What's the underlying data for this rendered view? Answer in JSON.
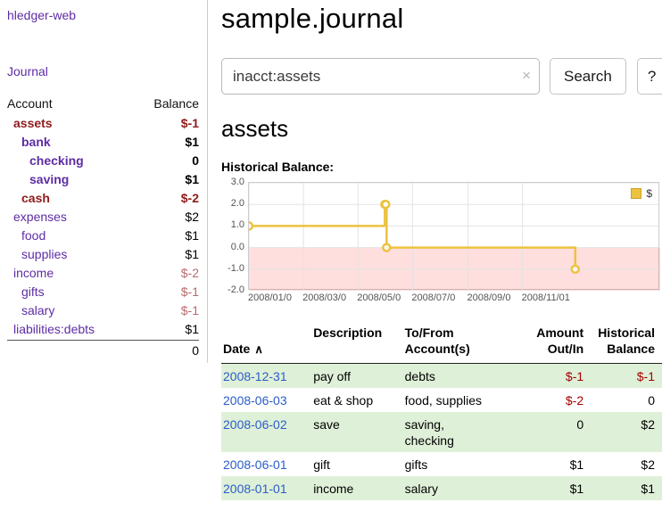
{
  "app": {
    "title": "hledger-web"
  },
  "sidebar": {
    "journal_link": "Journal",
    "accounts": {
      "header": {
        "account": "Account",
        "balance": "Balance"
      },
      "rows": [
        {
          "name": "assets",
          "balance": "$-1"
        },
        {
          "name": "bank",
          "balance": "$1"
        },
        {
          "name": "checking",
          "balance": "0"
        },
        {
          "name": "saving",
          "balance": "$1"
        },
        {
          "name": "cash",
          "balance": "$-2"
        },
        {
          "name": "expenses",
          "balance": "$2"
        },
        {
          "name": "food",
          "balance": "$1"
        },
        {
          "name": "supplies",
          "balance": "$1"
        },
        {
          "name": "income",
          "balance": "$-2"
        },
        {
          "name": "gifts",
          "balance": "$-1"
        },
        {
          "name": "salary",
          "balance": "$-1"
        },
        {
          "name": "liabilities:debts",
          "balance": "$1"
        }
      ],
      "total": "0"
    }
  },
  "main": {
    "title": "sample.journal",
    "search": {
      "value": "inacct:assets",
      "clear_icon": "×",
      "search_button": "Search",
      "help_button": "?"
    },
    "account_heading": "assets",
    "chart_title": "Historical Balance:"
  },
  "chart_data": {
    "type": "line",
    "step": true,
    "title": "Historical Balance",
    "legend": "$",
    "series": [
      {
        "name": "$",
        "color": "#edc240",
        "points": [
          {
            "date": "2008-01-01",
            "day": 0,
            "value": 1
          },
          {
            "date": "2008-06-01",
            "day": 152,
            "value": 2
          },
          {
            "date": "2008-06-02",
            "day": 153,
            "value": 2
          },
          {
            "date": "2008-06-03",
            "day": 154,
            "value": 0
          },
          {
            "date": "2008-12-31",
            "day": 365,
            "value": -1
          }
        ]
      }
    ],
    "y_ticks": [
      "3.0",
      "2.0",
      "1.0",
      "0.0",
      "-1.0",
      "-2.0"
    ],
    "x_ticks": [
      {
        "day": 0,
        "label": "2008/01/0"
      },
      {
        "day": 61,
        "label": "2008/03/0"
      },
      {
        "day": 122,
        "label": "2008/05/0"
      },
      {
        "day": 183,
        "label": "2008/07/0"
      },
      {
        "day": 245,
        "label": "2008/09/0"
      },
      {
        "day": 306,
        "label": "2008/11/01"
      }
    ],
    "ylim": [
      -2,
      3
    ],
    "xlim_days": [
      0,
      460
    ],
    "grid": true,
    "legend_position": "top-right",
    "negative_region_color": "rgba(255,0,0,0.13)"
  },
  "register": {
    "headers": {
      "date": "Date",
      "sort_icon": "∧",
      "description": "Description",
      "accounts": "To/From\nAccount(s)",
      "amount": "Amount\nOut/In",
      "balance": "Historical\nBalance"
    },
    "rows": [
      {
        "date": "2008-12-31",
        "description": "pay off",
        "accounts": "debts",
        "amount": "$-1",
        "balance": "$-1"
      },
      {
        "date": "2008-06-03",
        "description": "eat & shop",
        "accounts": "food, supplies",
        "amount": "$-2",
        "balance": "0"
      },
      {
        "date": "2008-06-02",
        "description": "save",
        "accounts": "saving,\nchecking",
        "amount": "0",
        "balance": "$2"
      },
      {
        "date": "2008-06-01",
        "description": "gift",
        "accounts": "gifts",
        "amount": "$1",
        "balance": "$2"
      },
      {
        "date": "2008-01-01",
        "description": "income",
        "accounts": "salary",
        "amount": "$1",
        "balance": "$1"
      }
    ]
  }
}
